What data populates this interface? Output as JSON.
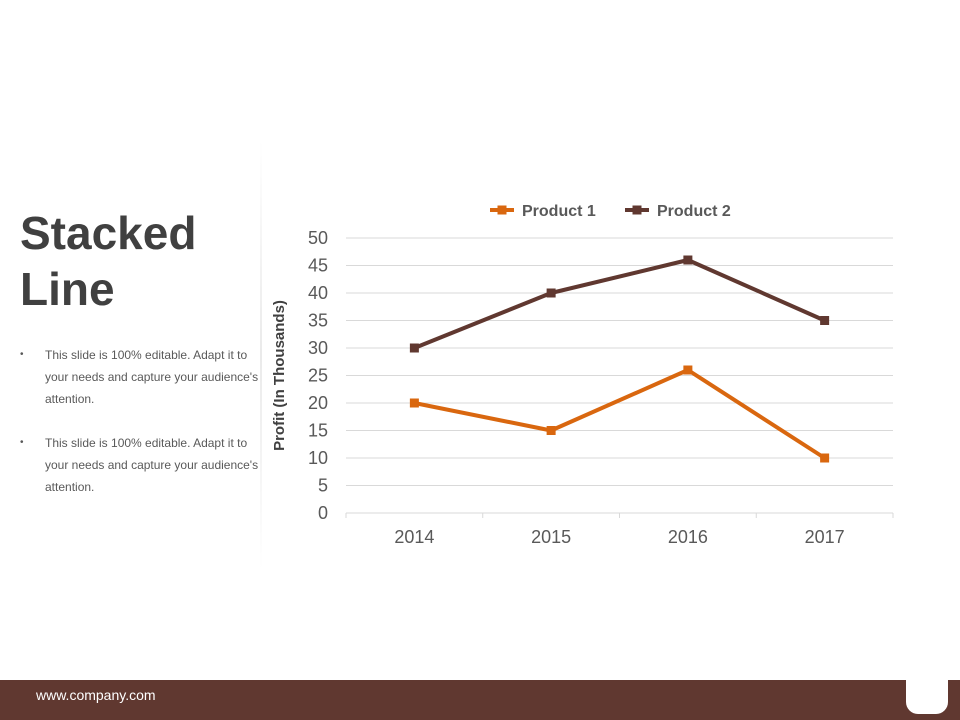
{
  "slide": {
    "title": "Stacked Line",
    "bullets": [
      "This slide is 100% editable. Adapt it to your needs and capture your audience's attention.",
      "This slide is 100% editable. Adapt it to your needs and capture your audience's attention."
    ],
    "footer_url": "www.company.com"
  },
  "colors": {
    "accent": "#603830",
    "product_1": "#D9670F",
    "product_2": "#603830",
    "grid": "#D9D9D9",
    "title": "#404040",
    "body_text": "#595959"
  },
  "chart_data": {
    "type": "line",
    "categories": [
      "2014",
      "2015",
      "2016",
      "2017"
    ],
    "series": [
      {
        "name": "Product 1",
        "values": [
          20,
          15,
          26,
          10
        ],
        "color": "#D9670F"
      },
      {
        "name": "Product 2",
        "values": [
          30,
          40,
          46,
          35
        ],
        "color": "#603830"
      }
    ],
    "title": "",
    "xlabel": "",
    "ylabel": "Profit (In Thousands)",
    "ylim": [
      0,
      50
    ],
    "yticks": [
      0,
      5,
      10,
      15,
      20,
      25,
      30,
      35,
      40,
      45,
      50
    ],
    "grid": true,
    "legend": "top-center",
    "markers": "square"
  }
}
